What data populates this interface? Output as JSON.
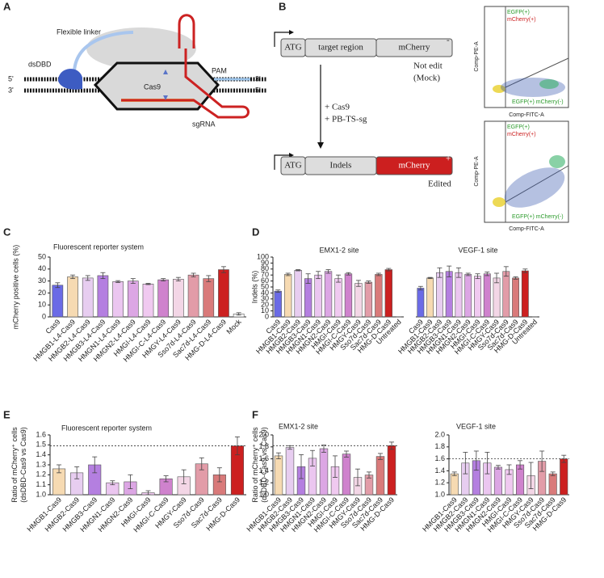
{
  "panels": [
    "A",
    "B",
    "C",
    "D",
    "E",
    "F"
  ],
  "diagram_a": {
    "linker": "Flexible linker",
    "dsdbd": "dsDBD",
    "cas9": "Cas9",
    "pam": "PAM",
    "sgrna": "sgRNA",
    "ends": [
      "5'",
      "3'",
      "3'",
      "5'"
    ]
  },
  "diagram_b": {
    "construct_top": [
      "ATG",
      "target region",
      "mCherry"
    ],
    "sign_top": "-",
    "caption_top": [
      "Not edit",
      "(Mock)"
    ],
    "treatment": [
      "+ Cas9",
      "+ PB-TS-sg"
    ],
    "construct_bottom": [
      "ATG",
      "Indels",
      "mCherry"
    ],
    "sign_bottom": "+",
    "caption_bottom": "Edited",
    "flow_plots": [
      {
        "gate_1": "EGFP(+)",
        "gate_2": "mCherry(+)",
        "gate_3": "EGFP(+) mCherry(-)",
        "y_axis": "Comp-PE-A",
        "x_axis": "Comp-FITC-A"
      },
      {
        "gate_1": "EGFP(+)",
        "gate_2": "mCherry(+)",
        "gate_3": "EGFP(+) mCherry(-)",
        "y_axis": "Comp-PE-A",
        "x_axis": "Comp-FITC-A"
      }
    ]
  },
  "chart_data": [
    {
      "type": "bar",
      "title": "Fluorescent reporter system",
      "ylabel": [
        "mCherry positive cells (%)"
      ],
      "categories": [
        "Cas9",
        "HMGB1-L4-Cas9",
        "HMGB2-L4-Cas9",
        "HMGB3-L4-Cas9",
        "HMGN1-L4-Cas9",
        "HMGN2-L4-Cas9",
        "HMGI-L4-Cas9",
        "HMGI-C-L4-Cas9",
        "HMGY-L4-Cas9",
        "Sso7d-L4-Cas9",
        "Sac7d-L4-Cas9",
        "HMG-D-L4-Cas9",
        "Mock"
      ],
      "values": [
        26.5,
        33.5,
        32.5,
        34.5,
        29.5,
        30,
        27.5,
        31,
        31.5,
        35,
        32,
        39.5,
        2.5
      ],
      "errors": [
        2,
        1.5,
        2,
        2.5,
        0.8,
        2,
        0.5,
        1,
        1.5,
        1.5,
        2.5,
        2.5,
        1
      ],
      "colors": [
        "#6b6be6",
        "#f6dab2",
        "#e7cdf0",
        "#b47fe0",
        "#ebc6f0",
        "#dca6e4",
        "#f0c9f0",
        "#cf82cd",
        "#f3d6e6",
        "#e29ca8",
        "#d97a7a",
        "#cc2020",
        "#ffffff"
      ],
      "ylim": [
        0,
        50
      ],
      "yticks": [
        0,
        10,
        20,
        30,
        40,
        50
      ]
    },
    {
      "type": "bar",
      "title": "EMX1-2 site",
      "ylabel": [
        "Indels (%)"
      ],
      "categories": [
        "Cas9",
        "HMGB1-Cas9",
        "HMGB2-Cas9",
        "HMGB3-Cas9",
        "HMGN1-Cas9",
        "HMGN2-Cas9",
        "HMGI-Cas9",
        "HMGI-C-Cas9",
        "HMGY-Cas9",
        "Sso7d-Cas9",
        "Sac7d-Cas9",
        "HMG-D-Cas9",
        "Untreated"
      ],
      "values": [
        43,
        71,
        78,
        64,
        70,
        76,
        64,
        72,
        56,
        58,
        71,
        79,
        0
      ],
      "errors": [
        2,
        2,
        1,
        8,
        6,
        3,
        6,
        2,
        5,
        2,
        2,
        2,
        0
      ],
      "colors": [
        "#6b6be6",
        "#f6dab2",
        "#e7cdf0",
        "#b47fe0",
        "#ebc6f0",
        "#dca6e4",
        "#f0c9f0",
        "#cf82cd",
        "#f3d6e6",
        "#e29ca8",
        "#d97a7a",
        "#cc2020",
        "#ffffff"
      ],
      "ylim": [
        0,
        100
      ],
      "yticks": [
        0,
        10,
        20,
        30,
        40,
        50,
        60,
        70,
        80,
        90,
        100
      ]
    },
    {
      "type": "bar",
      "title": "VEGF-1 site",
      "categories": [
        "Cas9",
        "HMGB1-Cas9",
        "HMGB2-Cas9",
        "HMGB3-Cas9",
        "HMGN1-Cas9",
        "HMGN2-Cas9",
        "HMGI-Cas9",
        "HMGI-C-Cas9",
        "HMGY-Cas9",
        "Sso7d-Cas9",
        "Sac7d-Cas9",
        "HMG-D-Cas9",
        "Untreated"
      ],
      "values": [
        48,
        65,
        74,
        76,
        74,
        71,
        68,
        72,
        65,
        76,
        65,
        77,
        0
      ],
      "errors": [
        3,
        1,
        8,
        9,
        8,
        2,
        4,
        3,
        8,
        8,
        2,
        3,
        0
      ],
      "colors": [
        "#6b6be6",
        "#f6dab2",
        "#e7cdf0",
        "#b47fe0",
        "#ebc6f0",
        "#dca6e4",
        "#f0c9f0",
        "#cf82cd",
        "#f3d6e6",
        "#e29ca8",
        "#d97a7a",
        "#cc2020",
        "#ffffff"
      ],
      "ylim": [
        0,
        100
      ]
    },
    {
      "type": "bar",
      "title": "Fluorescent reporter system",
      "ylabel": [
        "Ratio of mCherry⁺ cells",
        "(dsDBD-Cas9 vs Cas9)"
      ],
      "categories": [
        "HMGB1-Cas9",
        "HMGB2-Cas9",
        "HMGB3-Cas9",
        "HMGN1-Cas9",
        "HMGN2-Cas9",
        "HMGI-Cas9",
        "HMGI-C-Cas9",
        "HMGY-Cas9",
        "Sso7d-Cas9",
        "Sac7d-Cas9",
        "HMG-D-Cas9"
      ],
      "values": [
        1.26,
        1.22,
        1.3,
        1.12,
        1.13,
        1.02,
        1.16,
        1.18,
        1.31,
        1.2,
        1.49
      ],
      "errors": [
        0.04,
        0.06,
        0.08,
        0.02,
        0.07,
        0.02,
        0.03,
        0.07,
        0.06,
        0.07,
        0.09
      ],
      "colors": [
        "#f6dab2",
        "#e7cdf0",
        "#b47fe0",
        "#ebc6f0",
        "#dca6e4",
        "#f0c9f0",
        "#cf82cd",
        "#f3d6e6",
        "#e29ca8",
        "#d97a7a",
        "#cc2020"
      ],
      "ylim": [
        1,
        1.6
      ],
      "yticks": [
        {
          "value": 1,
          "label": "1.0"
        },
        1.1,
        1.2,
        1.3,
        1.4,
        1.5,
        1.6
      ],
      "reference_line": 1.49
    },
    {
      "type": "bar",
      "title": "EMX1-2 site",
      "ylabel": [
        "Ratio of mCherry⁺ cells",
        "(dsDBD-Cas9 vs Cas9)"
      ],
      "categories": [
        "HMGB1-Cas9",
        "HMGB2-Cas9",
        "HMGB3-Cas9",
        "HMGN1-Cas9",
        "HMGN2-Cas9",
        "HMGI-Cas9",
        "HMGI-C-Cas9",
        "HMGY-Cas9",
        "Sso7d-Cas9",
        "Sac7d-Cas9",
        "HMG-D-Cas9"
      ],
      "values": [
        1.65,
        1.79,
        1.47,
        1.61,
        1.77,
        1.47,
        1.68,
        1.29,
        1.33,
        1.64,
        1.82
      ],
      "errors": [
        0.05,
        0.03,
        0.2,
        0.13,
        0.06,
        0.18,
        0.05,
        0.14,
        0.05,
        0.05,
        0.06
      ],
      "colors": [
        "#f6dab2",
        "#e7cdf0",
        "#b47fe0",
        "#ebc6f0",
        "#dca6e4",
        "#f0c9f0",
        "#cf82cd",
        "#f3d6e6",
        "#e29ca8",
        "#d97a7a",
        "#cc2020"
      ],
      "ylim": [
        1,
        2
      ],
      "yticks": [
        {
          "value": 1,
          "label": "1.0"
        },
        1.2,
        1.4,
        1.6,
        1.8,
        {
          "value": 2,
          "label": "2.0"
        }
      ],
      "reference_line": 1.82
    },
    {
      "type": "bar",
      "title": "VEGF-1 site",
      "categories": [
        "HMGB1-Cas9",
        "HMGB2-Cas9",
        "HMGB3-Cas9",
        "HMGN1-Cas9",
        "HMGN2-Cas9",
        "HMGI-Cas9",
        "HMGI-C-Cas9",
        "HMGY-Cas9",
        "Sso7d-Cas9",
        "Sac7d-Cas9",
        "HMG-D-Cas9"
      ],
      "values": [
        1.35,
        1.53,
        1.57,
        1.53,
        1.46,
        1.42,
        1.5,
        1.32,
        1.56,
        1.35,
        1.6
      ],
      "errors": [
        0.03,
        0.18,
        0.16,
        0.18,
        0.03,
        0.08,
        0.07,
        0.22,
        0.17,
        0.03,
        0.06
      ],
      "colors": [
        "#f6dab2",
        "#e7cdf0",
        "#b47fe0",
        "#ebc6f0",
        "#dca6e4",
        "#f0c9f0",
        "#cf82cd",
        "#f3d6e6",
        "#e29ca8",
        "#d97a7a",
        "#cc2020"
      ],
      "ylim": [
        1,
        2
      ],
      "yticks": [
        {
          "value": 1,
          "label": "1.0"
        },
        1.2,
        1.4,
        1.6,
        1.8,
        {
          "value": 2,
          "label": "2.0"
        }
      ],
      "reference_line": 1.6
    }
  ]
}
